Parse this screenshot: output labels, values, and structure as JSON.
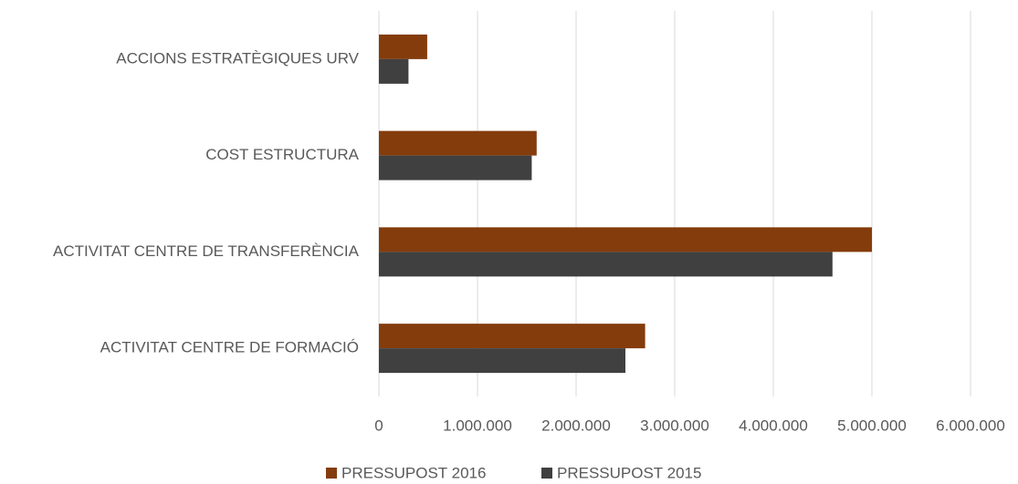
{
  "chart_data": {
    "type": "hbar",
    "categories": [
      "ACCIONS ESTRATÈGIQUES URV",
      "COST ESTRUCTURA",
      "ACTIVITAT CENTRE DE TRANSFERÈNCIA",
      "ACTIVITAT CENTRE DE FORMACIÓ"
    ],
    "series": [
      {
        "name": "PRESSUPOST 2016",
        "color": "#843c0c",
        "values": [
          490000,
          1600000,
          5000000,
          2700000
        ]
      },
      {
        "name": "PRESSUPOST 2015",
        "color": "#404040",
        "values": [
          300000,
          1550000,
          4600000,
          2500000
        ]
      }
    ],
    "xlim": [
      0,
      6000000
    ],
    "xticks": [
      0,
      {
        "value": 1000000,
        "label": "1.000.000"
      },
      {
        "value": 2000000,
        "label": "2.000.000"
      },
      {
        "value": 3000000,
        "label": "3.000.000"
      },
      {
        "value": 4000000,
        "label": "4.000.000"
      },
      {
        "value": 5000000,
        "label": "5.000.000"
      },
      {
        "value": 6000000,
        "label": "6.000.000"
      }
    ],
    "grid": true,
    "legend": "bottom"
  }
}
